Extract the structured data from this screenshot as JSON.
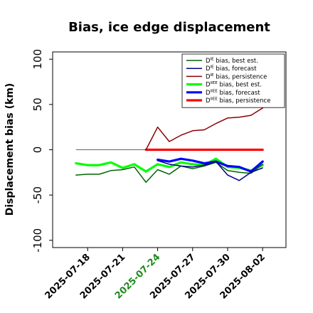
{
  "chart_data": {
    "type": "line",
    "title": "Bias, ice edge displacement",
    "xlabel": "",
    "ylabel": "Displacement bias (km)",
    "ylim": [
      -108,
      108
    ],
    "yticks": [
      -100,
      -50,
      0,
      50,
      100
    ],
    "xrange": [
      "2025-07-15",
      "2025-08-04"
    ],
    "xticks": [
      {
        "date": "2025-07-18",
        "label": "2025-07-18",
        "color": "#000000"
      },
      {
        "date": "2025-07-21",
        "label": "2025-07-21",
        "color": "#000000"
      },
      {
        "date": "2025-07-24",
        "label": "2025-07-24",
        "color": "#1f8a1f"
      },
      {
        "date": "2025-07-27",
        "label": "2025-07-27",
        "color": "#000000"
      },
      {
        "date": "2025-07-30",
        "label": "2025-07-30",
        "color": "#000000"
      },
      {
        "date": "2025-08-02",
        "label": "2025-08-02",
        "color": "#000000"
      }
    ],
    "zero_line": {
      "color": "#000000",
      "from": "2025-07-17",
      "to": "2025-08-02"
    },
    "legend_position": "top-right",
    "series": [
      {
        "name": "D^IE bias, best est.",
        "base": "D",
        "sup": "IE",
        "rest": " bias, best est.",
        "color": "#006400",
        "width": 1.5,
        "x": [
          "2025-07-17",
          "2025-07-18",
          "2025-07-19",
          "2025-07-20",
          "2025-07-21",
          "2025-07-22",
          "2025-07-23",
          "2025-07-24",
          "2025-07-25",
          "2025-07-26",
          "2025-07-27",
          "2025-07-28",
          "2025-07-29",
          "2025-07-30",
          "2025-07-31",
          "2025-08-01",
          "2025-08-02"
        ],
        "y": [
          -28,
          -27,
          -27,
          -23,
          -22,
          -19,
          -36,
          -22,
          -27,
          -18,
          -21,
          -18,
          -14,
          -23,
          -25,
          -26,
          -16
        ]
      },
      {
        "name": "D^IE bias, forecast",
        "base": "D",
        "sup": "IE",
        "rest": " bias, forecast",
        "color": "#00008b",
        "width": 1.5,
        "x": [
          "2025-07-24",
          "2025-07-25",
          "2025-07-26",
          "2025-07-27",
          "2025-07-28",
          "2025-07-29",
          "2025-07-30",
          "2025-07-31",
          "2025-08-01",
          "2025-08-02"
        ],
        "y": [
          -12,
          -16,
          -18,
          -19,
          -17,
          -13,
          -28,
          -34,
          -25,
          -20
        ]
      },
      {
        "name": "D^IE bias, persistence",
        "base": "D",
        "sup": "IE",
        "rest": " bias, persistence",
        "color": "#8b0000",
        "width": 1.5,
        "x": [
          "2025-07-23",
          "2025-07-24",
          "2025-07-25",
          "2025-07-26",
          "2025-07-27",
          "2025-07-28",
          "2025-07-29",
          "2025-07-30",
          "2025-07-31",
          "2025-08-01",
          "2025-08-02"
        ],
        "y": [
          0,
          25,
          9,
          16,
          21,
          22,
          29,
          35,
          36,
          38,
          46
        ]
      },
      {
        "name": "D^IIEE bias, best est.",
        "base": "D",
        "sup": "IIEE",
        "rest": " bias, best est.",
        "color": "#00ff00",
        "width": 3.2,
        "x": [
          "2025-07-17",
          "2025-07-18",
          "2025-07-19",
          "2025-07-20",
          "2025-07-21",
          "2025-07-22",
          "2025-07-23",
          "2025-07-24",
          "2025-07-25",
          "2025-07-26",
          "2025-07-27",
          "2025-07-28",
          "2025-07-29",
          "2025-07-30",
          "2025-07-31",
          "2025-08-01",
          "2025-08-02"
        ],
        "y": [
          -15,
          -17,
          -17,
          -14,
          -20,
          -16,
          -24,
          -16,
          -19,
          -14,
          -16,
          -17,
          -10,
          -19,
          -20,
          -23,
          -17
        ]
      },
      {
        "name": "D^IIEE bias, forecast",
        "base": "D",
        "sup": "IIEE",
        "rest": " bias, forecast",
        "color": "#0000ff",
        "width": 3.2,
        "x": [
          "2025-07-24",
          "2025-07-25",
          "2025-07-26",
          "2025-07-27",
          "2025-07-28",
          "2025-07-29",
          "2025-07-30",
          "2025-07-31",
          "2025-08-01",
          "2025-08-02"
        ],
        "y": [
          -11,
          -13,
          -10,
          -12,
          -15,
          -13,
          -18,
          -19,
          -24,
          -13
        ]
      },
      {
        "name": "D^IIEE bias, persistence",
        "base": "D",
        "sup": "IIEE",
        "rest": " bias, persistence",
        "color": "#ff0000",
        "width": 3.2,
        "x": [
          "2025-07-23",
          "2025-07-24",
          "2025-07-25",
          "2025-07-26",
          "2025-07-27",
          "2025-07-28",
          "2025-07-29",
          "2025-07-30",
          "2025-07-31",
          "2025-08-01",
          "2025-08-02"
        ],
        "y": [
          0,
          0,
          0,
          0,
          0,
          0,
          0,
          0,
          0,
          0,
          0
        ]
      }
    ]
  }
}
